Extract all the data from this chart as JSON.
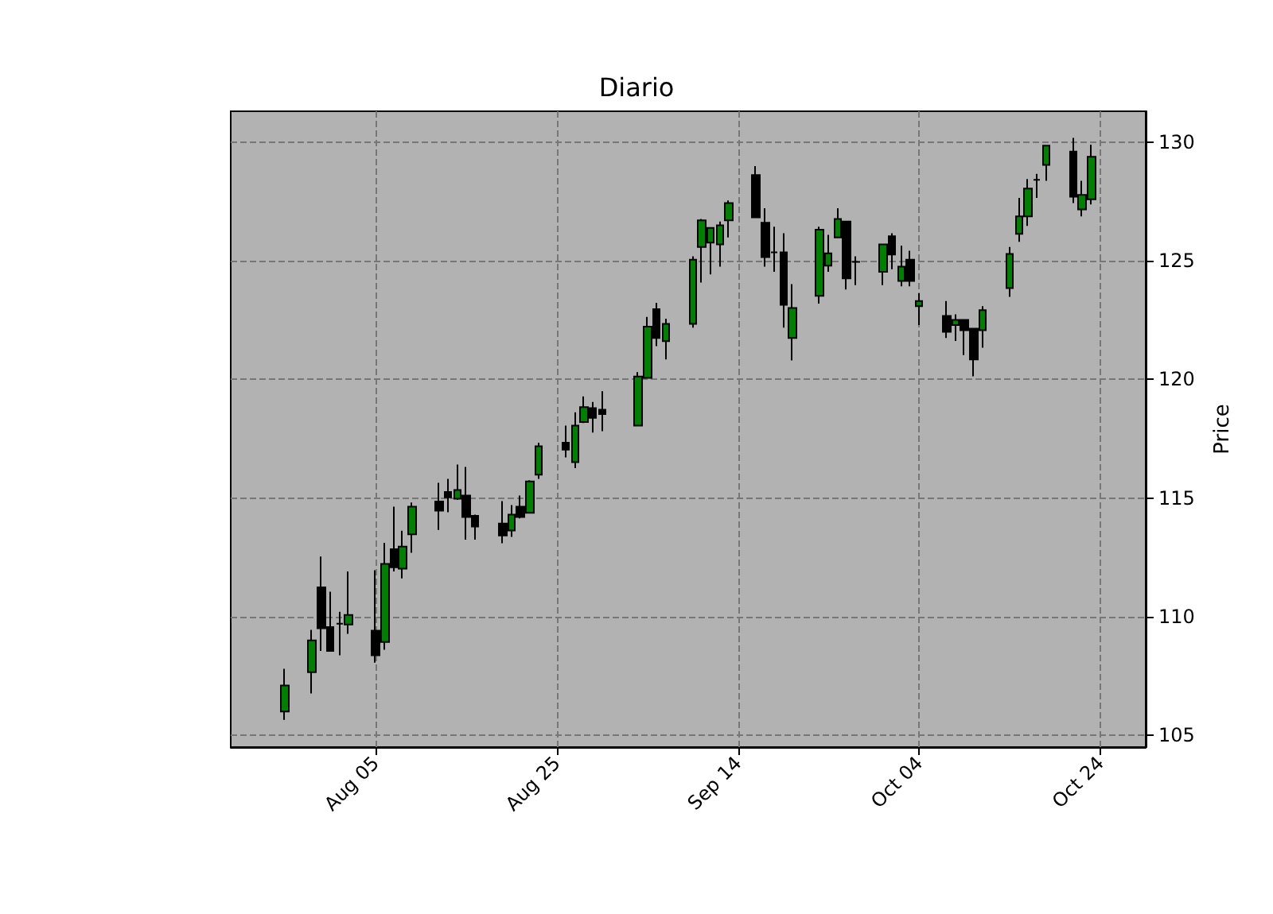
{
  "chart_data": {
    "type": "candlestick",
    "title": "Diario",
    "ylabel": "Price",
    "x": [
      "--07-26",
      "--07-29",
      "--07-30",
      "--07-31",
      "--08-01",
      "--08-02",
      "--08-05",
      "--08-06",
      "--08-07",
      "--08-08",
      "--08-09",
      "--08-12",
      "--08-13",
      "--08-14",
      "--08-15",
      "--08-16",
      "--08-19",
      "--08-20",
      "--08-21",
      "--08-22",
      "--08-23",
      "--08-26",
      "--08-27",
      "--08-28",
      "--08-29",
      "--08-30",
      "--09-03",
      "--09-04",
      "--09-05",
      "--09-06",
      "--09-09",
      "--09-10",
      "--09-11",
      "--09-12",
      "--09-13",
      "--09-16",
      "--09-17",
      "--09-18",
      "--09-19",
      "--09-20",
      "--09-23",
      "--09-24",
      "--09-25",
      "--09-26",
      "--09-27",
      "--09-30",
      "--10-01",
      "--10-02",
      "--10-03",
      "--10-04",
      "--10-07",
      "--10-08",
      "--10-09",
      "--10-10",
      "--10-11",
      "--10-14",
      "--10-15",
      "--10-16",
      "--10-17",
      "--10-18",
      "--10-21",
      "--10-22",
      "--10-23"
    ],
    "ohlc": [
      [
        106.0,
        107.8,
        105.65,
        107.1
      ],
      [
        107.66,
        109.44,
        106.76,
        109.0
      ],
      [
        111.23,
        112.53,
        108.55,
        109.51
      ],
      [
        109.56,
        111.05,
        108.55,
        108.55
      ],
      [
        109.7,
        110.2,
        108.37,
        109.7
      ],
      [
        109.67,
        111.9,
        109.27,
        110.07
      ],
      [
        109.41,
        111.95,
        108.06,
        108.37
      ],
      [
        108.93,
        113.11,
        108.6,
        112.22
      ],
      [
        112.84,
        114.63,
        111.9,
        112.08
      ],
      [
        112.02,
        113.62,
        111.61,
        112.95
      ],
      [
        113.47,
        114.81,
        112.69,
        114.63
      ],
      [
        114.85,
        115.64,
        113.65,
        114.47
      ],
      [
        115.25,
        115.81,
        114.4,
        115.03
      ],
      [
        114.97,
        116.41,
        114.92,
        115.34
      ],
      [
        115.1,
        116.31,
        113.24,
        114.2
      ],
      [
        114.25,
        114.3,
        113.24,
        113.8
      ],
      [
        113.92,
        114.87,
        113.09,
        113.42
      ],
      [
        113.63,
        114.7,
        113.36,
        114.3
      ],
      [
        114.63,
        115.1,
        114.14,
        114.2
      ],
      [
        114.37,
        115.75,
        114.37,
        115.7
      ],
      [
        115.98,
        117.33,
        115.81,
        117.18
      ],
      [
        117.33,
        118.05,
        116.71,
        117.04
      ],
      [
        116.51,
        118.61,
        116.26,
        118.05
      ],
      [
        118.2,
        119.28,
        118.16,
        118.83
      ],
      [
        118.79,
        119.05,
        117.76,
        118.38
      ],
      [
        118.72,
        119.5,
        117.82,
        118.54
      ],
      [
        118.05,
        120.3,
        118.05,
        120.12
      ],
      [
        120.06,
        122.63,
        120.06,
        122.22
      ],
      [
        122.96,
        123.23,
        121.4,
        121.74
      ],
      [
        121.61,
        122.56,
        120.84,
        122.34
      ],
      [
        122.34,
        125.19,
        122.18,
        125.04
      ],
      [
        125.58,
        126.76,
        124.08,
        126.7
      ],
      [
        125.76,
        126.38,
        124.42,
        126.38
      ],
      [
        125.69,
        126.65,
        124.75,
        126.49
      ],
      [
        126.7,
        127.54,
        125.98,
        127.43
      ],
      [
        128.61,
        128.99,
        126.83,
        126.83
      ],
      [
        126.6,
        127.21,
        124.75,
        125.15
      ],
      [
        125.35,
        126.43,
        124.53,
        125.35
      ],
      [
        125.35,
        126.16,
        122.18,
        123.14
      ],
      [
        121.74,
        124.01,
        120.8,
        123.01
      ],
      [
        123.52,
        126.43,
        123.19,
        126.31
      ],
      [
        124.79,
        126.09,
        124.53,
        125.31
      ],
      [
        125.98,
        127.21,
        125.98,
        126.76
      ],
      [
        126.65,
        126.65,
        123.79,
        124.26
      ],
      [
        124.95,
        125.19,
        123.97,
        124.95
      ],
      [
        124.53,
        125.69,
        123.97,
        125.69
      ],
      [
        126.03,
        126.16,
        124.64,
        125.26
      ],
      [
        124.15,
        125.64,
        123.92,
        124.75
      ],
      [
        125.04,
        125.42,
        123.92,
        124.15
      ],
      [
        123.08,
        123.63,
        122.29,
        123.3
      ],
      [
        122.67,
        123.3,
        121.74,
        122.0
      ],
      [
        122.29,
        122.74,
        121.62,
        122.51
      ],
      [
        122.51,
        122.51,
        121.02,
        122.07
      ],
      [
        122.14,
        122.14,
        120.13,
        120.84
      ],
      [
        122.07,
        123.08,
        121.33,
        122.92
      ],
      [
        123.85,
        125.58,
        123.48,
        125.29
      ],
      [
        126.13,
        127.65,
        125.8,
        126.87
      ],
      [
        126.87,
        128.44,
        126.47,
        128.04
      ],
      [
        128.41,
        128.66,
        127.65,
        128.41
      ],
      [
        129.04,
        129.85,
        128.37,
        129.85
      ],
      [
        129.6,
        130.18,
        127.43,
        127.7
      ],
      [
        127.16,
        128.37,
        126.87,
        127.77
      ],
      [
        127.59,
        129.89,
        127.37,
        129.38
      ]
    ],
    "colors": [
      "#008000",
      "#008000",
      "#000000",
      "#000000",
      "#000000",
      "#008000",
      "#000000",
      "#008000",
      "#000000",
      "#008000",
      "#008000",
      "#000000",
      "#000000",
      "#008000",
      "#000000",
      "#000000",
      "#000000",
      "#008000",
      "#000000",
      "#008000",
      "#008000",
      "#000000",
      "#008000",
      "#008000",
      "#000000",
      "#000000",
      "#008000",
      "#008000",
      "#000000",
      "#008000",
      "#008000",
      "#008000",
      "#008000",
      "#008000",
      "#008000",
      "#000000",
      "#000000",
      "#000000",
      "#000000",
      "#008000",
      "#008000",
      "#008000",
      "#008000",
      "#000000",
      "#000000",
      "#008000",
      "#000000",
      "#008000",
      "#000000",
      "#008000",
      "#000000",
      "#008000",
      "#000000",
      "#000000",
      "#008000",
      "#008000",
      "#008000",
      "#008000",
      "#000000",
      "#008000",
      "#000000",
      "#008000",
      "#008000"
    ],
    "xlim": [
      "--07-20",
      "--10-29"
    ],
    "xticks": [
      {
        "value": "--08-05",
        "label": "Aug 05"
      },
      {
        "value": "--08-25",
        "label": "Aug 25"
      },
      {
        "value": "--09-14",
        "label": "Sep 14"
      },
      {
        "value": "--10-04",
        "label": "Oct 04"
      },
      {
        "value": "--10-24",
        "label": "Oct 24"
      }
    ],
    "ylim": [
      104.5,
      131.3
    ],
    "yticks": [
      105,
      110,
      115,
      120,
      125,
      130
    ],
    "grid": true
  }
}
